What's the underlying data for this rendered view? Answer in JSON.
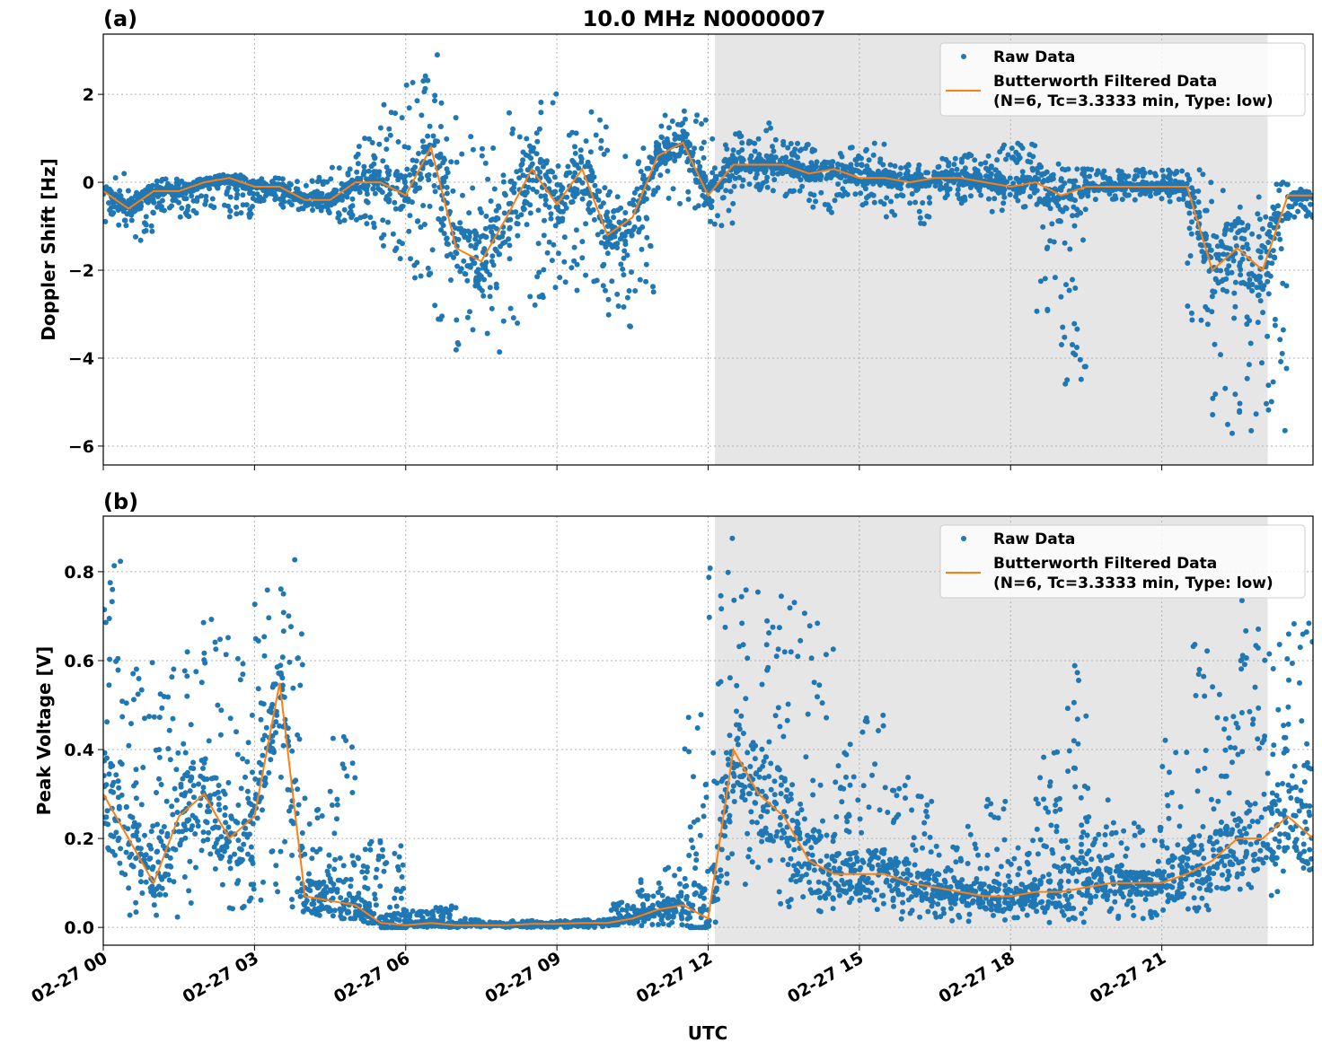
{
  "chart_data": [
    {
      "type": "scatter+line",
      "panel_label": "(a)",
      "title": "10.0 MHz N0000007",
      "xlabel": "",
      "ylabel": "Doppler Shift [Hz]",
      "xlim_hours_utc": [
        0,
        24
      ],
      "ylim": [
        -6.43,
        3.37
      ],
      "yticks": [
        2,
        0,
        -2,
        -4,
        -6
      ],
      "ytick_labels": [
        "2",
        "0",
        "−2",
        "−4",
        "−6"
      ],
      "grid": true,
      "legend_placement": "top-right",
      "legend": [
        "Raw Data",
        "Butterworth Filtered Data",
        "(N=6, Tc=3.3333 min, Type: low)"
      ],
      "shaded_region_utc": [
        "02-27 12:08",
        "02-27 23:06"
      ],
      "x_hours": [
        0,
        0.5,
        1,
        1.5,
        2,
        2.5,
        3,
        3.5,
        4,
        4.5,
        5,
        5.5,
        6,
        6.5,
        7,
        7.5,
        8,
        8.5,
        9,
        9.5,
        10,
        10.5,
        11,
        11.5,
        12,
        12.5,
        13,
        13.5,
        14,
        14.5,
        15,
        15.5,
        16,
        16.5,
        17,
        17.5,
        18,
        18.5,
        19,
        19.5,
        20,
        20.5,
        21,
        21.5,
        22,
        22.5,
        23,
        23.5,
        24
      ],
      "series": [
        {
          "name": "Butterworth Filtered Data",
          "color": "#ff7f0e",
          "values": [
            -0.2,
            -0.6,
            -0.2,
            -0.2,
            0.0,
            0.1,
            -0.1,
            -0.1,
            -0.4,
            -0.4,
            0.0,
            0.0,
            -0.3,
            0.8,
            -1.5,
            -1.8,
            -0.8,
            0.3,
            -0.5,
            0.3,
            -1.2,
            -0.8,
            0.6,
            0.9,
            -0.3,
            0.4,
            0.4,
            0.4,
            0.2,
            0.3,
            0.1,
            0.1,
            0.0,
            0.1,
            0.1,
            0.0,
            -0.1,
            0.0,
            -0.3,
            -0.1,
            -0.1,
            -0.1,
            -0.1,
            -0.1,
            -2.0,
            -1.5,
            -2.0,
            -0.3,
            -0.3
          ]
        },
        {
          "name": "Raw Data",
          "color": "#1f77b4",
          "low": [
            -0.6,
            -1.4,
            -0.6,
            -0.8,
            -0.4,
            -0.8,
            -0.4,
            -0.5,
            -0.8,
            -0.9,
            -0.7,
            -1.5,
            -2.0,
            -2.5,
            -3.8,
            -4.1,
            -3.5,
            -2.8,
            -2.7,
            -2.5,
            -3.3,
            -2.6,
            -0.5,
            -0.3,
            -1.0,
            -0.1,
            -0.1,
            -0.3,
            -0.7,
            -0.4,
            -0.5,
            -0.6,
            -1.0,
            -0.4,
            -0.4,
            -0.7,
            -0.6,
            -0.7,
            -5.2,
            -0.4,
            -0.4,
            -0.4,
            -0.4,
            -0.5,
            -6.0,
            -5.9,
            -5.9,
            -0.8,
            -0.9
          ],
          "high": [
            0.2,
            0.1,
            0.1,
            0.0,
            0.2,
            0.2,
            0.1,
            0.1,
            0.1,
            0.3,
            0.4,
            1.6,
            2.0,
            2.9,
            1.2,
            0.7,
            1.2,
            2.2,
            1.3,
            1.6,
            0.6,
            0.3,
            1.5,
            1.7,
            1.0,
            0.9,
            1.4,
            0.9,
            0.8,
            0.7,
            0.9,
            0.6,
            0.4,
            0.5,
            0.6,
            0.8,
            0.9,
            0.5,
            0.3,
            0.3,
            0.3,
            0.3,
            0.3,
            0.3,
            0.2,
            0.1,
            0.0,
            -0.1,
            -0.1
          ]
        }
      ]
    },
    {
      "type": "scatter+line",
      "panel_label": "(b)",
      "xlabel": "UTC",
      "ylabel": "Peak Voltage [V]",
      "xlim_hours_utc": [
        0,
        24
      ],
      "ylim": [
        -0.04,
        0.925
      ],
      "yticks": [
        0.0,
        0.2,
        0.4,
        0.6,
        0.8
      ],
      "ytick_labels": [
        "0.0",
        "0.2",
        "0.4",
        "0.6",
        "0.8"
      ],
      "xticks_hours": [
        0,
        3,
        6,
        9,
        12,
        15,
        18,
        21
      ],
      "xtick_labels": [
        "02-27 00",
        "02-27 03",
        "02-27 06",
        "02-27 09",
        "02-27 12",
        "02-27 15",
        "02-27 18",
        "02-27 21"
      ],
      "grid": true,
      "legend_placement": "top-right",
      "legend": [
        "Raw Data",
        "Butterworth Filtered Data",
        "(N=6, Tc=3.3333 min, Type: low)"
      ],
      "shaded_region_utc": [
        "02-27 12:08",
        "02-27 23:06"
      ],
      "x_hours": [
        0,
        0.5,
        1,
        1.5,
        2,
        2.5,
        3,
        3.5,
        4,
        4.5,
        5,
        5.5,
        6,
        6.5,
        7,
        7.5,
        8,
        8.5,
        9,
        9.5,
        10,
        10.5,
        11,
        11.5,
        12,
        12.5,
        13,
        13.5,
        14,
        14.5,
        15,
        15.5,
        16,
        16.5,
        17,
        17.5,
        18,
        18.5,
        19,
        19.5,
        20,
        20.5,
        21,
        21.5,
        22,
        22.5,
        23,
        23.5,
        24
      ],
      "series": [
        {
          "name": "Butterworth Filtered Data",
          "color": "#ff7f0e",
          "values": [
            0.3,
            0.2,
            0.1,
            0.25,
            0.3,
            0.2,
            0.25,
            0.55,
            0.07,
            0.06,
            0.05,
            0.01,
            0.005,
            0.01,
            0.005,
            0.005,
            0.005,
            0.008,
            0.008,
            0.01,
            0.01,
            0.02,
            0.04,
            0.05,
            0.02,
            0.4,
            0.3,
            0.25,
            0.15,
            0.12,
            0.12,
            0.12,
            0.1,
            0.09,
            0.08,
            0.07,
            0.07,
            0.08,
            0.08,
            0.09,
            0.1,
            0.1,
            0.1,
            0.12,
            0.15,
            0.2,
            0.2,
            0.25,
            0.2
          ]
        },
        {
          "name": "Raw Data",
          "color": "#1f77b4",
          "low": [
            0.05,
            0.03,
            0.02,
            0.03,
            0.04,
            0.03,
            0.04,
            0.05,
            0.02,
            0.02,
            0.02,
            0.0,
            0.0,
            0.0,
            0.0,
            0.0,
            0.0,
            0.0,
            0.0,
            0.0,
            0.0,
            0.0,
            0.0,
            0.0,
            0.0,
            0.03,
            0.03,
            0.02,
            0.02,
            0.02,
            0.01,
            0.01,
            0.01,
            0.01,
            0.01,
            0.01,
            0.01,
            0.01,
            0.01,
            0.01,
            0.02,
            0.02,
            0.02,
            0.03,
            0.08,
            0.08,
            0.08,
            0.06,
            0.05
          ],
          "high": [
            0.87,
            0.6,
            0.55,
            0.7,
            0.74,
            0.55,
            0.72,
            0.83,
            0.2,
            0.46,
            0.2,
            0.2,
            0.03,
            0.05,
            0.02,
            0.01,
            0.015,
            0.015,
            0.015,
            0.015,
            0.02,
            0.1,
            0.13,
            0.14,
            0.88,
            0.72,
            0.83,
            0.78,
            0.69,
            0.35,
            0.49,
            0.37,
            0.3,
            0.19,
            0.18,
            0.29,
            0.2,
            0.2,
            0.6,
            0.32,
            0.24,
            0.23,
            0.22,
            0.64,
            0.38,
            0.75,
            0.58,
            0.73,
            0.55
          ]
        }
      ]
    }
  ]
}
